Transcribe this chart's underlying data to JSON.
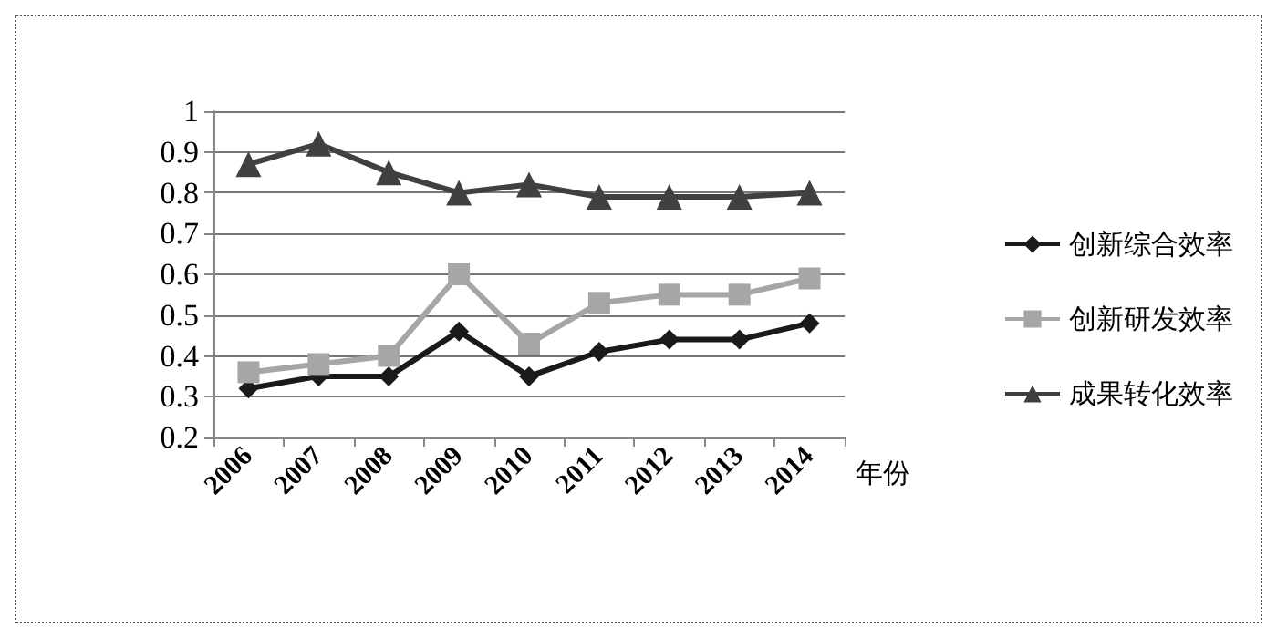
{
  "chart_data": {
    "type": "line",
    "xlabel": "年份",
    "categories": [
      "2006",
      "2007",
      "2008",
      "2009",
      "2010",
      "2011",
      "2012",
      "2013",
      "2014"
    ],
    "series": [
      {
        "name": "创新综合效率",
        "color": "#1a1a1a",
        "marker": "diamond",
        "values": [
          0.32,
          0.35,
          0.35,
          0.46,
          0.35,
          0.41,
          0.44,
          0.44,
          0.48
        ]
      },
      {
        "name": "创新研发效率",
        "color": "#a6a6a6",
        "marker": "square",
        "values": [
          0.36,
          0.38,
          0.4,
          0.6,
          0.43,
          0.53,
          0.55,
          0.55,
          0.59
        ]
      },
      {
        "name": "成果转化效率",
        "color": "#404040",
        "marker": "triangle",
        "values": [
          0.87,
          0.92,
          0.85,
          0.8,
          0.82,
          0.79,
          0.79,
          0.79,
          0.8
        ]
      }
    ],
    "ylim": [
      0.2,
      1
    ],
    "yticks": [
      0.2,
      0.3,
      0.4,
      0.5,
      0.6,
      0.7,
      0.8,
      0.9,
      1
    ],
    "grid": "y",
    "legend": "right",
    "line_style": "solid"
  }
}
